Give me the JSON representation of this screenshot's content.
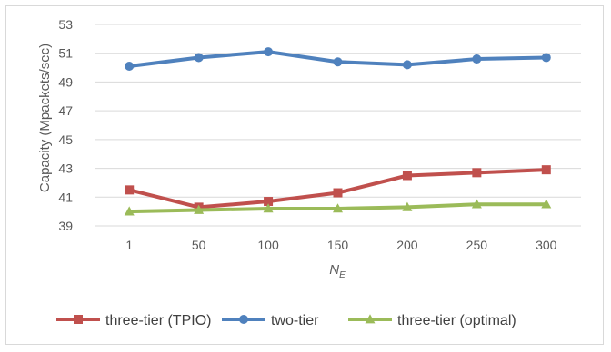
{
  "chart_data": {
    "type": "line",
    "title": "",
    "xlabel": "N",
    "xlabel_subscript": "E",
    "ylabel": "Capacity (Mpackets/sec)",
    "categories": [
      "1",
      "50",
      "100",
      "150",
      "200",
      "250",
      "300"
    ],
    "ylim": [
      39,
      53
    ],
    "yticks": [
      "39",
      "41",
      "43",
      "45",
      "47",
      "49",
      "51",
      "53"
    ],
    "grid": true,
    "legend_position": "bottom",
    "series": [
      {
        "name": "three-tier (TPIO)",
        "color": "#c0504d",
        "marker": "square",
        "values": [
          41.5,
          40.3,
          40.7,
          41.3,
          42.5,
          42.7,
          42.9
        ]
      },
      {
        "name": "two-tier",
        "color": "#4f81bd",
        "marker": "circle",
        "values": [
          50.1,
          50.7,
          51.1,
          50.4,
          50.2,
          50.6,
          50.7
        ]
      },
      {
        "name": "three-tier (optimal)",
        "color": "#9bbb59",
        "marker": "triangle",
        "values": [
          40.0,
          40.1,
          40.2,
          40.2,
          40.3,
          40.5,
          40.5
        ]
      }
    ]
  }
}
